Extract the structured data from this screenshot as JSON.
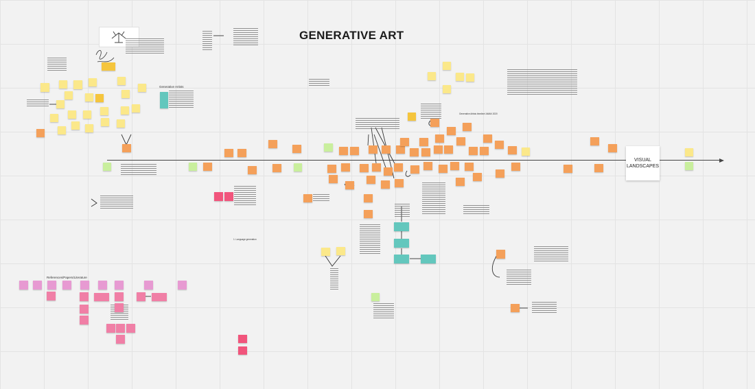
{
  "board": {
    "title": "GENERATIVE ART",
    "timeline_end_label": "VISUAL LANDSCAPES",
    "section_generative_artists": "Generative Artists",
    "section_references": "References/Papers/Literature",
    "section_timeline_caption": "Generative Artists timeline/ AMAN 2020",
    "small_caption": "1. Language generation"
  },
  "colors": {
    "sticky_orange": "#f4a05a",
    "sticky_yellow": "#fbe88a",
    "sticky_green": "#c9ef9d",
    "sticky_pink": "#f07fa6",
    "sticky_teal": "#63c7bd",
    "canvas": "#f2f2f2"
  }
}
